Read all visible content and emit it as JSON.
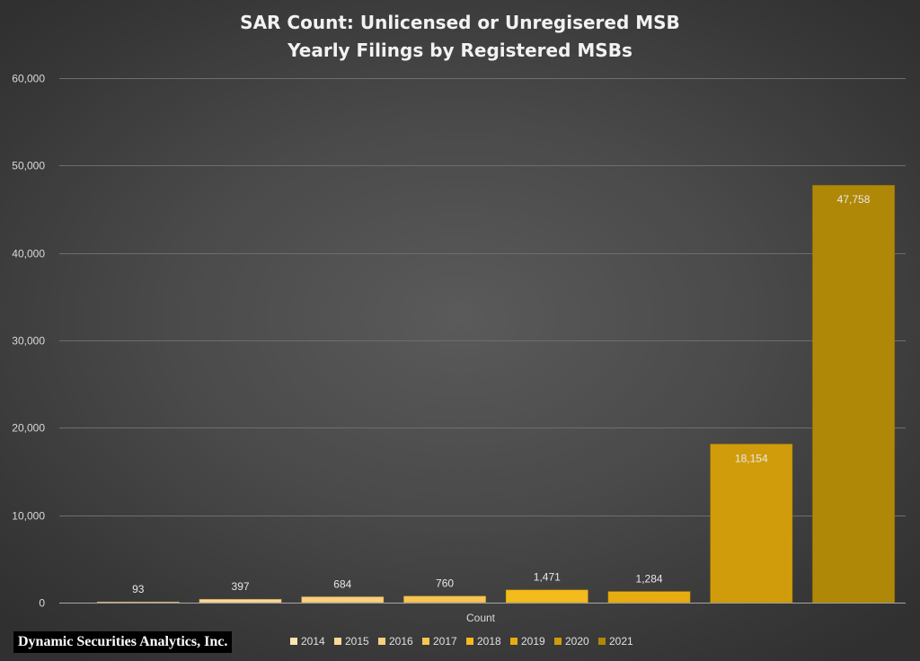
{
  "chart_data": {
    "type": "bar",
    "title": [
      "SAR Count: Unlicensed or Unregisered MSB",
      "Yearly Filings by Registered MSBs"
    ],
    "xlabel": "Count",
    "ylabel": "",
    "ylim": [
      0,
      60000
    ],
    "yticks": [
      "0",
      "10,000",
      "20,000",
      "30,000",
      "40,000",
      "50,000",
      "60,000"
    ],
    "grid": true,
    "legend_position": "bottom",
    "series": [
      {
        "name": "2014",
        "value": 93,
        "label": "93",
        "color": "#fde3b1"
      },
      {
        "name": "2015",
        "value": 397,
        "label": "397",
        "color": "#fcd99a"
      },
      {
        "name": "2016",
        "value": 684,
        "label": "684",
        "color": "#f9cf80"
      },
      {
        "name": "2017",
        "value": 760,
        "label": "760",
        "color": "#f6c553"
      },
      {
        "name": "2018",
        "value": 1471,
        "label": "1,471",
        "color": "#f3bb1c"
      },
      {
        "name": "2019",
        "value": 1284,
        "label": "1,284",
        "color": "#e7ad10"
      },
      {
        "name": "2020",
        "value": 18154,
        "label": "18,154",
        "color": "#d19c0b"
      },
      {
        "name": "2021",
        "value": 47758,
        "label": "47,758",
        "color": "#b08808"
      }
    ]
  },
  "credit": "Dynamic Securities Analytics, Inc."
}
